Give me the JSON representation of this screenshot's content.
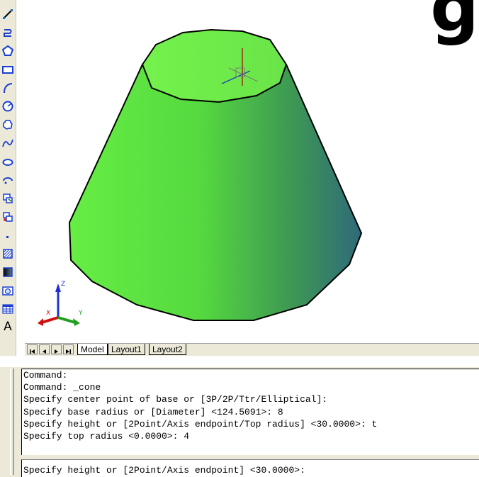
{
  "window": {
    "corner_glyph": "g"
  },
  "toolbar": {
    "tools": [
      "line-icon",
      "polyline-icon",
      "polygon-icon",
      "rectangle-icon",
      "arc-icon",
      "circle-icon",
      "revision-cloud-icon",
      "spline-icon",
      "ellipse-icon",
      "ellipse-arc-icon",
      "insert-block-icon",
      "make-block-icon",
      "point-icon",
      "hatch-icon",
      "gradient-icon",
      "region-icon",
      "table-icon",
      "multiline-text-icon"
    ],
    "text_tool_label": "A"
  },
  "viewport": {
    "model_fill_light": "#66ee44",
    "model_fill_dark": "#2f6a7a",
    "ucs": {
      "x_label": "X",
      "y_label": "Y",
      "z_label": "Z"
    }
  },
  "tabs": {
    "items": [
      "Model",
      "Layout1",
      "Layout2"
    ],
    "active": "Model"
  },
  "command": {
    "history": [
      "Command:",
      "Command: _cone",
      "Specify center point of base or [3P/2P/Ttr/Elliptical]:",
      "Specify base radius or [Diameter] <124.5091>: 8",
      "Specify height or [2Point/Axis endpoint/Top radius] <30.0000>: t",
      "Specify top radius <0.0000>: 4"
    ],
    "prompt": "Specify height or [2Point/Axis endpoint] <30.0000>:"
  }
}
